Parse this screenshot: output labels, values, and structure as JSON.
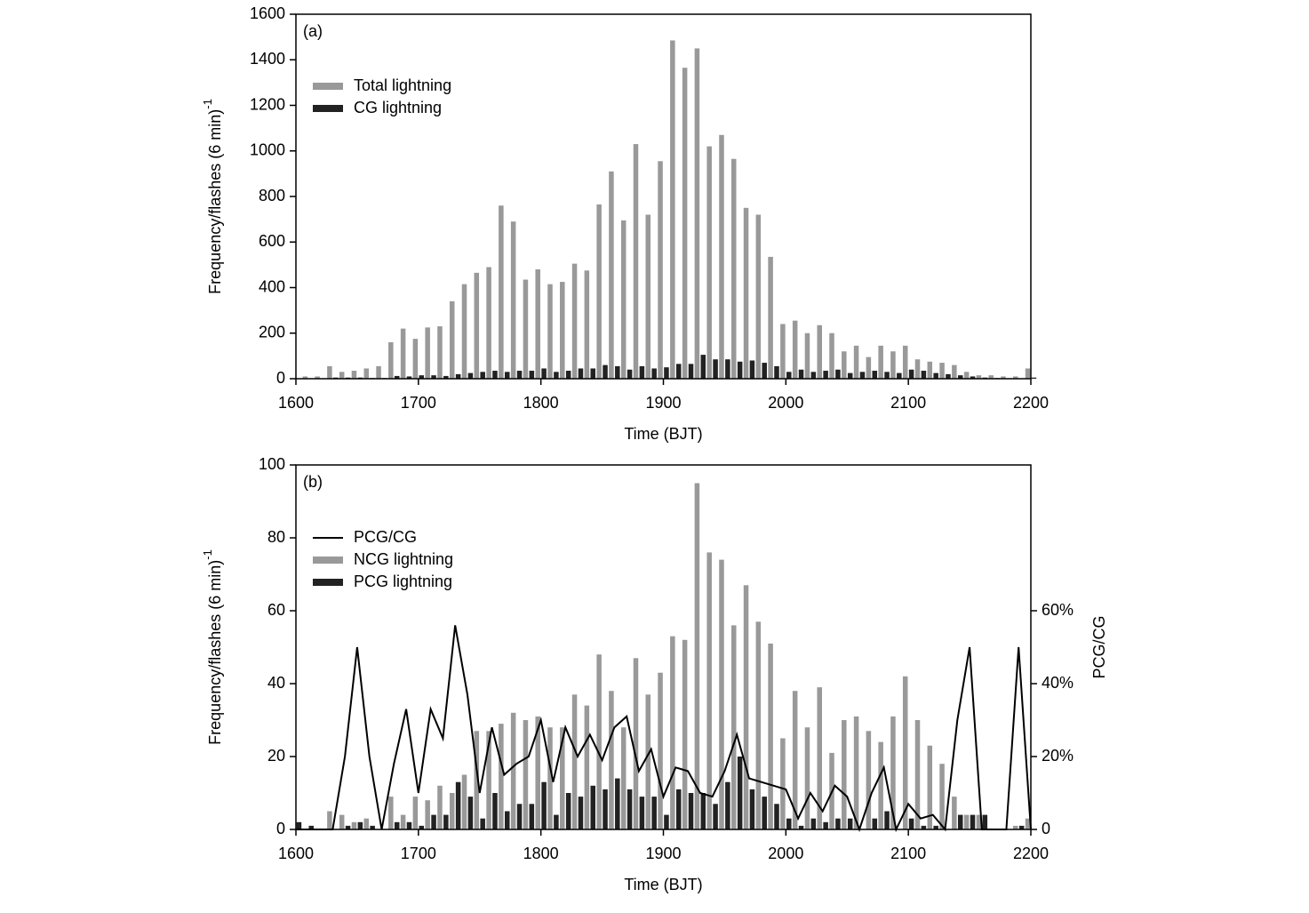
{
  "chart_data": [
    {
      "type": "bar",
      "panel_label": "(a)",
      "xlabel": "Time (BJT)",
      "ylabel": "Frequency/flashes (6 min)",
      "ylabel_sup": "-1",
      "x": [
        1610,
        1620,
        1630,
        1640,
        1650,
        1660,
        1670,
        1680,
        1690,
        1700,
        1710,
        1720,
        1730,
        1740,
        1750,
        1760,
        1770,
        1780,
        1790,
        1800,
        1810,
        1820,
        1830,
        1840,
        1850,
        1860,
        1870,
        1880,
        1890,
        1900,
        1910,
        1920,
        1930,
        1940,
        1950,
        1960,
        1970,
        1980,
        1990,
        2000,
        2010,
        2020,
        2030,
        2040,
        2050,
        2060,
        2070,
        2080,
        2090,
        2100,
        2110,
        2120,
        2130,
        2140,
        2150,
        2160,
        2170,
        2180,
        2190,
        2200
      ],
      "series": [
        {
          "name": "Total lightning",
          "type": "bar",
          "color": "#999999",
          "values": [
            10,
            10,
            55,
            30,
            35,
            45,
            55,
            160,
            220,
            175,
            225,
            230,
            340,
            415,
            465,
            490,
            760,
            690,
            435,
            480,
            415,
            425,
            505,
            475,
            765,
            910,
            695,
            1030,
            720,
            955,
            1485,
            1365,
            1450,
            1020,
            1070,
            965,
            750,
            720,
            535,
            240,
            255,
            200,
            235,
            200,
            120,
            145,
            95,
            145,
            120,
            145,
            85,
            75,
            70,
            60,
            30,
            15,
            15,
            10,
            10,
            45
          ]
        },
        {
          "name": "CG lightning",
          "type": "bar",
          "color": "#222222",
          "values": [
            2,
            2,
            5,
            5,
            5,
            3,
            3,
            12,
            10,
            15,
            15,
            12,
            20,
            25,
            30,
            35,
            30,
            35,
            35,
            45,
            30,
            35,
            45,
            45,
            60,
            55,
            40,
            55,
            45,
            50,
            65,
            65,
            105,
            85,
            85,
            75,
            80,
            70,
            55,
            30,
            40,
            30,
            35,
            40,
            25,
            30,
            35,
            30,
            25,
            40,
            35,
            25,
            20,
            15,
            10,
            5,
            3,
            2,
            2,
            5
          ]
        }
      ],
      "xlim": [
        1600,
        2200
      ],
      "xticks": [
        1600,
        1700,
        1800,
        1900,
        2000,
        2100,
        2200
      ],
      "ylim": [
        0,
        1600
      ],
      "yticks": [
        0,
        200,
        400,
        600,
        800,
        1000,
        1200,
        1400,
        1600
      ]
    },
    {
      "type": "bar",
      "panel_label": "(b)",
      "xlabel": "Time (BJT)",
      "ylabel": "Frequency/flashes (6 min)",
      "ylabel_sup": "-1",
      "y2label": "PCG/CG",
      "x": [
        1600,
        1610,
        1620,
        1630,
        1640,
        1650,
        1660,
        1670,
        1680,
        1690,
        1700,
        1710,
        1720,
        1730,
        1740,
        1750,
        1760,
        1770,
        1780,
        1790,
        1800,
        1810,
        1820,
        1830,
        1840,
        1850,
        1860,
        1870,
        1880,
        1890,
        1900,
        1910,
        1920,
        1930,
        1940,
        1950,
        1960,
        1970,
        1980,
        1990,
        2000,
        2010,
        2020,
        2030,
        2040,
        2050,
        2060,
        2070,
        2080,
        2090,
        2100,
        2110,
        2120,
        2130,
        2140,
        2150,
        2160,
        2170,
        2180,
        2190,
        2200
      ],
      "series": [
        {
          "name": "PCG/CG",
          "type": "line",
          "axis": "y2",
          "color": "#000000",
          "values": [
            0,
            0,
            0,
            0,
            20,
            50,
            20,
            0,
            18,
            33,
            10,
            33,
            25,
            56,
            37,
            10,
            28,
            15,
            18,
            20,
            30,
            13,
            28,
            20,
            26,
            19,
            28,
            31,
            16,
            22,
            9,
            17,
            16,
            10,
            9,
            16,
            26,
            14,
            13,
            12,
            11,
            3,
            10,
            5,
            12,
            9,
            0,
            10,
            17,
            0,
            7,
            3,
            4,
            0,
            30,
            50,
            0,
            0,
            0,
            50,
            0
          ]
        },
        {
          "name": "NCG lightning",
          "type": "bar",
          "color": "#999999",
          "values": [
            0,
            0,
            0,
            5,
            4,
            2,
            3,
            0,
            9,
            4,
            9,
            8,
            12,
            10,
            15,
            27,
            27,
            29,
            32,
            30,
            31,
            28,
            28,
            37,
            34,
            48,
            38,
            28,
            47,
            37,
            43,
            53,
            52,
            95,
            76,
            74,
            56,
            67,
            57,
            51,
            25,
            38,
            28,
            39,
            21,
            30,
            31,
            27,
            24,
            31,
            42,
            30,
            23,
            18,
            9,
            4,
            4,
            0,
            0,
            1,
            3
          ]
        },
        {
          "name": "PCG lightning",
          "type": "bar",
          "color": "#222222",
          "values": [
            2,
            1,
            0,
            0,
            1,
            2,
            1,
            0,
            2,
            2,
            1,
            4,
            4,
            13,
            9,
            3,
            10,
            5,
            7,
            7,
            13,
            4,
            10,
            9,
            12,
            11,
            14,
            11,
            9,
            9,
            4,
            11,
            10,
            10,
            7,
            13,
            20,
            11,
            9,
            7,
            3,
            1,
            3,
            2,
            3,
            3,
            0,
            3,
            5,
            0,
            3,
            1,
            1,
            0,
            4,
            4,
            4,
            0,
            0,
            1,
            0
          ]
        }
      ],
      "xlim": [
        1600,
        2200
      ],
      "xticks": [
        1600,
        1700,
        1800,
        1900,
        2000,
        2100,
        2200
      ],
      "ylim": [
        0,
        100
      ],
      "yticks": [
        0,
        20,
        40,
        60,
        80,
        100
      ],
      "y2lim": [
        0,
        100
      ],
      "y2ticks": [
        0,
        {
          "value": 20,
          "label": "20%"
        },
        {
          "value": 40,
          "label": "40%"
        },
        {
          "value": 60,
          "label": "60%"
        }
      ]
    }
  ]
}
